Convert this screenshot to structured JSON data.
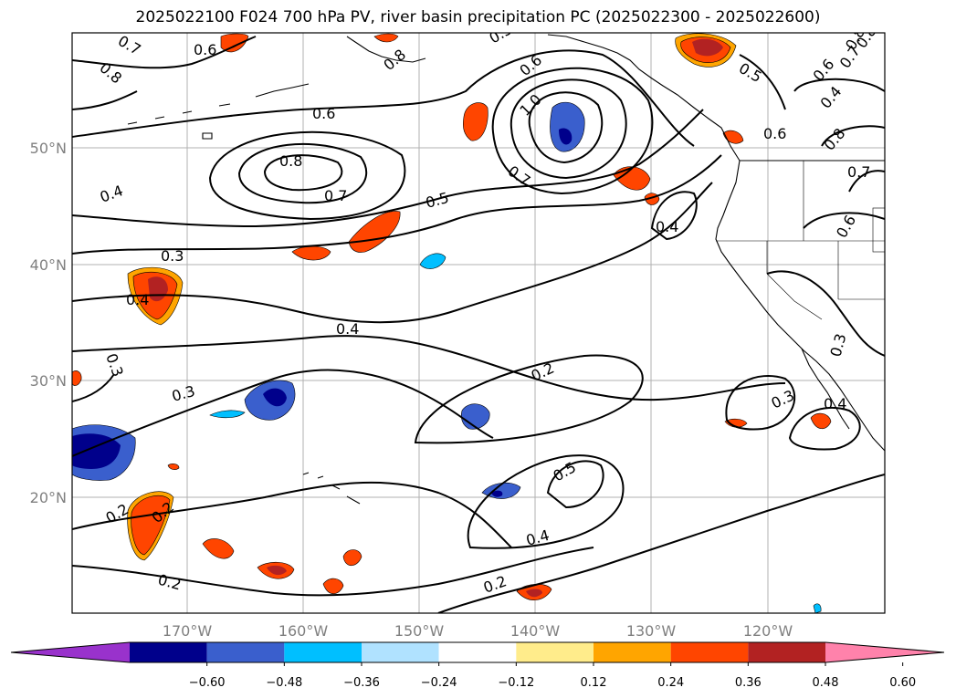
{
  "title": "2025022100 F024 700 hPa PV, river basin precipitation PC (2025022300 - 2025022600)",
  "latitude_labels": [
    "50°N",
    "40°N",
    "30°N",
    "20°N"
  ],
  "longitude_labels": [
    "170°W",
    "160°W",
    "150°W",
    "140°W",
    "130°W",
    "120°W"
  ],
  "contour_labels": [
    "0.6",
    "0.7",
    "0.8",
    "0.8",
    "0.6",
    "0.8",
    "0.7",
    "0.4",
    "0.5",
    "0.6",
    "1.0",
    "0.7",
    "0.5",
    "0.6",
    "0.8",
    "0.5",
    "0.4",
    "0.3",
    "0.4",
    "0.4",
    "0.3",
    "0.3",
    "0.2",
    "0.2",
    "0.2",
    "0.5",
    "0.4",
    "0.2",
    "0.2",
    "0.3",
    "0.4",
    "0.3",
    "0.6",
    "0.7",
    "0.8",
    "0.4",
    "0.6",
    "0.7",
    "0.8"
  ],
  "colorbar": {
    "ticks": [
      "−0.60",
      "−0.48",
      "−0.36",
      "−0.24",
      "−0.12",
      "0.12",
      "0.24",
      "0.36",
      "0.48",
      "0.60"
    ],
    "colors": [
      "#9932cc",
      "#00008b",
      "#3a5fcd",
      "#00bfff",
      "#b0e2ff",
      "#ffffff",
      "#ffec8b",
      "#ffa500",
      "#ff4500",
      "#b22222",
      "#ff82ab"
    ]
  }
}
